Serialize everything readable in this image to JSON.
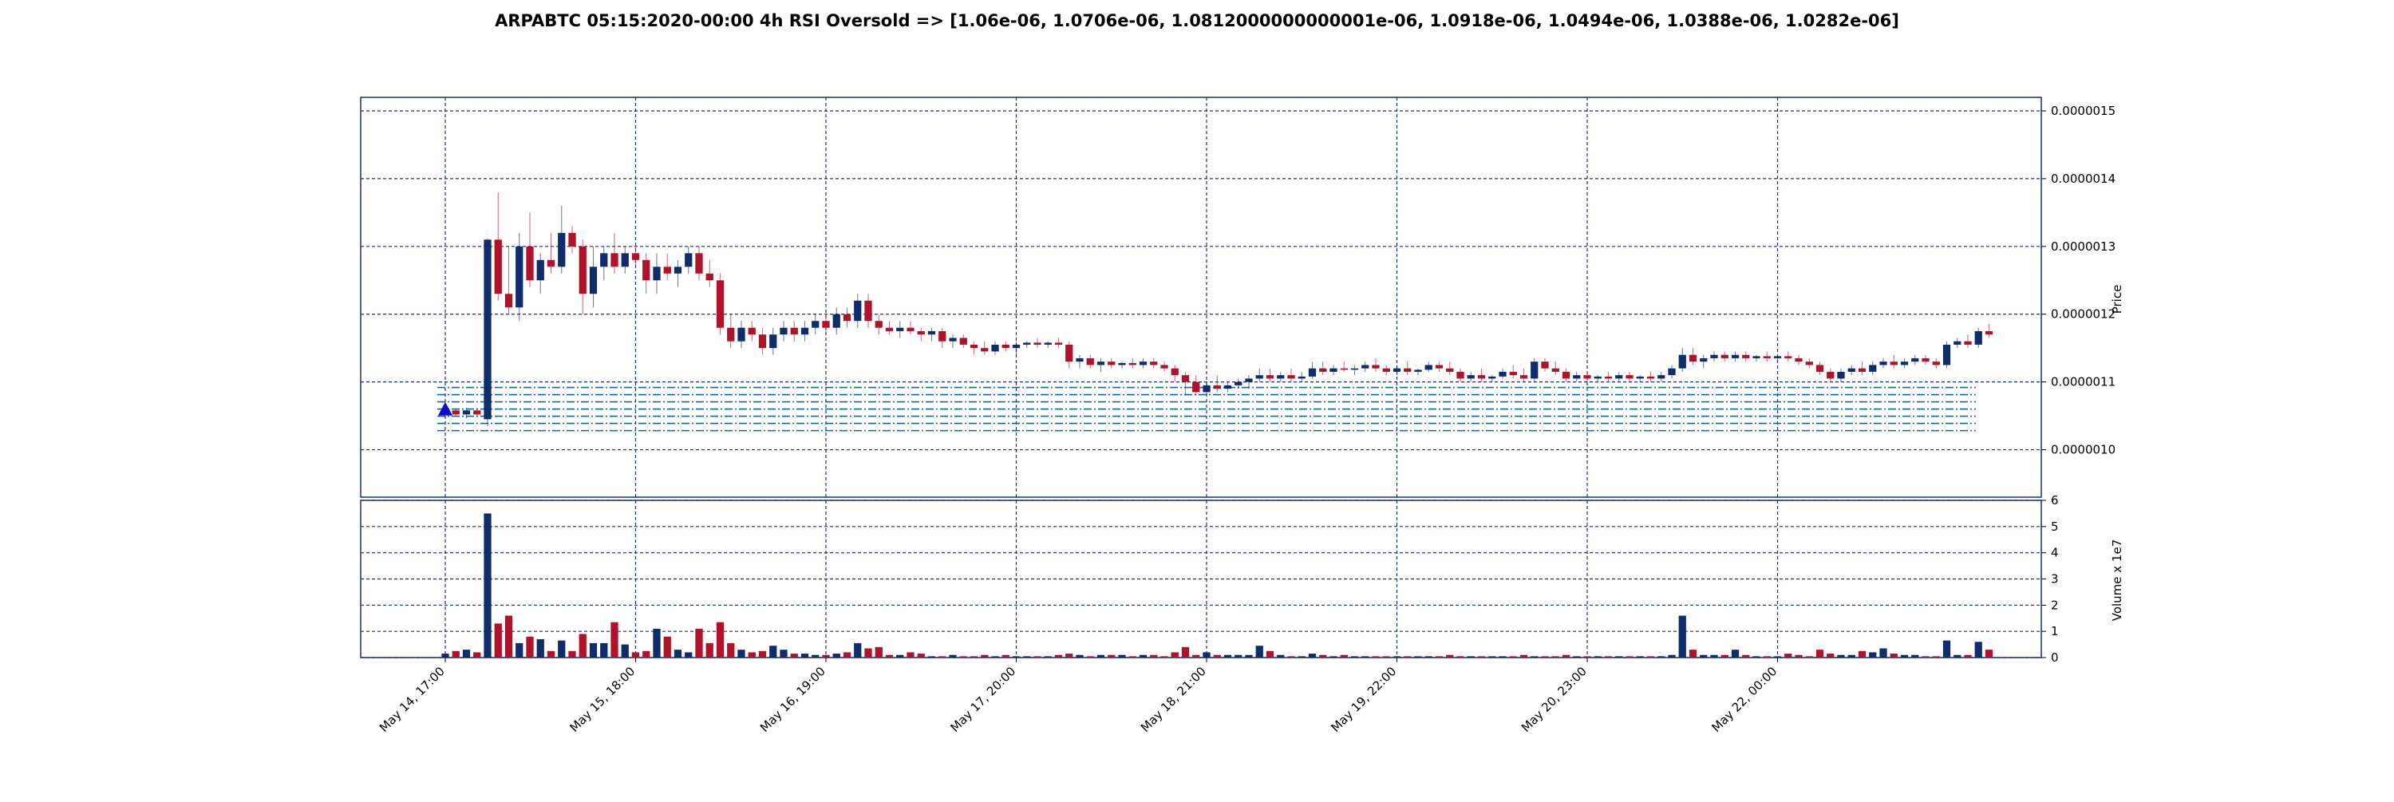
{
  "chart_data": {
    "type": "candlestick",
    "title": "ARPABTC 05:15:2020-00:00 4h RSI Oversold => [1.06e-06, 1.0706e-06, 1.0812000000000001e-06, 1.0918e-06, 1.0494e-06, 1.0388e-06, 1.0282e-06]",
    "colors": {
      "up": "#0f2d6b",
      "down": "#b0122a",
      "grid": "#1a2f7a",
      "level_line": "#0a6aa0",
      "marker": "#0a0acd"
    },
    "price_panel": {
      "ylabel": "Price",
      "ylim": [
        9.3e-07,
        1.52e-06
      ],
      "ytick_values": [
        1e-06,
        1.1e-06,
        1.2e-06,
        1.3e-06,
        1.4e-06,
        1.5e-06
      ],
      "ytick_labels": [
        "0.0000010",
        "0.0000011",
        "0.0000012",
        "0.0000013",
        "0.0000014",
        "0.0000015"
      ],
      "grid": true,
      "horizontal_levels": [
        1.06e-06,
        1.0706e-06,
        1.0812e-06,
        1.0918e-06,
        1.0494e-06,
        1.0388e-06,
        1.0282e-06
      ],
      "signal_marker": {
        "type": "triangle-up",
        "bar": 0,
        "price": 1.06e-06
      }
    },
    "volume_panel": {
      "ylabel": "Volume x 1e7",
      "ylim": [
        0,
        6
      ],
      "ytick_values": [
        0,
        1,
        2,
        3,
        4,
        5,
        6
      ],
      "ytick_labels": [
        "0",
        "1",
        "2",
        "3",
        "4",
        "5",
        "6"
      ],
      "grid": true
    },
    "x_axis": {
      "num_bars": 145,
      "tick_bars": [
        0,
        18,
        36,
        54,
        72,
        90,
        108,
        126
      ],
      "tick_labels": [
        "May 14, 17:00",
        "May 15, 18:00",
        "May 16, 19:00",
        "May 17, 20:00",
        "May 18, 21:00",
        "May 19, 22:00",
        "May 20, 23:00",
        "May 22, 00:00"
      ]
    },
    "bars": [
      [
        1.055e-06,
        1.062e-06,
        1.048e-06,
        1.058e-06,
        0.15
      ],
      [
        1.058e-06,
        1.06e-06,
        1.05e-06,
        1.052e-06,
        0.25
      ],
      [
        1.052e-06,
        1.062e-06,
        1.046e-06,
        1.058e-06,
        0.3
      ],
      [
        1.058e-06,
        1.062e-06,
        1.048e-06,
        1.052e-06,
        0.2
      ],
      [
        1.045e-06,
        1.312e-06,
        1.035e-06,
        1.31e-06,
        5.5
      ],
      [
        1.31e-06,
        1.38e-06,
        1.22e-06,
        1.23e-06,
        1.3
      ],
      [
        1.23e-06,
        1.3e-06,
        1.2e-06,
        1.21e-06,
        1.6
      ],
      [
        1.21e-06,
        1.32e-06,
        1.19e-06,
        1.3e-06,
        0.55
      ],
      [
        1.3e-06,
        1.35e-06,
        1.24e-06,
        1.25e-06,
        0.8
      ],
      [
        1.25e-06,
        1.29e-06,
        1.23e-06,
        1.28e-06,
        0.7
      ],
      [
        1.28e-06,
        1.32e-06,
        1.26e-06,
        1.27e-06,
        0.25
      ],
      [
        1.27e-06,
        1.36e-06,
        1.26e-06,
        1.32e-06,
        0.65
      ],
      [
        1.32e-06,
        1.33e-06,
        1.29e-06,
        1.3e-06,
        0.25
      ],
      [
        1.3e-06,
        1.31e-06,
        1.2e-06,
        1.23e-06,
        0.9
      ],
      [
        1.23e-06,
        1.3e-06,
        1.21e-06,
        1.27e-06,
        0.55
      ],
      [
        1.27e-06,
        1.3e-06,
        1.25e-06,
        1.29e-06,
        0.55
      ],
      [
        1.29e-06,
        1.32e-06,
        1.26e-06,
        1.27e-06,
        1.35
      ],
      [
        1.27e-06,
        1.3e-06,
        1.26e-06,
        1.29e-06,
        0.5
      ],
      [
        1.29e-06,
        1.3e-06,
        1.27e-06,
        1.28e-06,
        0.2
      ],
      [
        1.28e-06,
        1.29e-06,
        1.23e-06,
        1.25e-06,
        0.25
      ],
      [
        1.25e-06,
        1.29e-06,
        1.23e-06,
        1.27e-06,
        1.1
      ],
      [
        1.27e-06,
        1.29e-06,
        1.25e-06,
        1.26e-06,
        0.8
      ],
      [
        1.26e-06,
        1.28e-06,
        1.24e-06,
        1.27e-06,
        0.3
      ],
      [
        1.27e-06,
        1.3e-06,
        1.26e-06,
        1.29e-06,
        0.2
      ],
      [
        1.29e-06,
        1.3e-06,
        1.25e-06,
        1.26e-06,
        1.1
      ],
      [
        1.26e-06,
        1.28e-06,
        1.24e-06,
        1.25e-06,
        0.55
      ],
      [
        1.25e-06,
        1.26e-06,
        1.17e-06,
        1.18e-06,
        1.35
      ],
      [
        1.18e-06,
        1.2e-06,
        1.15e-06,
        1.16e-06,
        0.55
      ],
      [
        1.16e-06,
        1.19e-06,
        1.15e-06,
        1.18e-06,
        0.3
      ],
      [
        1.18e-06,
        1.19e-06,
        1.16e-06,
        1.17e-06,
        0.2
      ],
      [
        1.17e-06,
        1.18e-06,
        1.14e-06,
        1.15e-06,
        0.25
      ],
      [
        1.15e-06,
        1.18e-06,
        1.14e-06,
        1.17e-06,
        0.45
      ],
      [
        1.17e-06,
        1.19e-06,
        1.16e-06,
        1.18e-06,
        0.3
      ],
      [
        1.18e-06,
        1.19e-06,
        1.16e-06,
        1.17e-06,
        0.15
      ],
      [
        1.17e-06,
        1.19e-06,
        1.16e-06,
        1.18e-06,
        0.15
      ],
      [
        1.18e-06,
        1.2e-06,
        1.17e-06,
        1.19e-06,
        0.1
      ],
      [
        1.19e-06,
        1.2e-06,
        1.17e-06,
        1.18e-06,
        0.1
      ],
      [
        1.18e-06,
        1.21e-06,
        1.17e-06,
        1.2e-06,
        0.15
      ],
      [
        1.2e-06,
        1.21e-06,
        1.18e-06,
        1.19e-06,
        0.2
      ],
      [
        1.19e-06,
        1.23e-06,
        1.18e-06,
        1.22e-06,
        0.55
      ],
      [
        1.22e-06,
        1.23e-06,
        1.18e-06,
        1.19e-06,
        0.35
      ],
      [
        1.19e-06,
        1.2e-06,
        1.17e-06,
        1.18e-06,
        0.4
      ],
      [
        1.18e-06,
        1.19e-06,
        1.17e-06,
        1.175e-06,
        0.1
      ],
      [
        1.175e-06,
        1.19e-06,
        1.165e-06,
        1.18e-06,
        0.1
      ],
      [
        1.18e-06,
        1.19e-06,
        1.17e-06,
        1.175e-06,
        0.2
      ],
      [
        1.175e-06,
        1.18e-06,
        1.16e-06,
        1.17e-06,
        0.15
      ],
      [
        1.17e-06,
        1.18e-06,
        1.16e-06,
        1.175e-06,
        0.05
      ],
      [
        1.175e-06,
        1.18e-06,
        1.15e-06,
        1.16e-06,
        0.05
      ],
      [
        1.16e-06,
        1.17e-06,
        1.15e-06,
        1.165e-06,
        0.1
      ],
      [
        1.165e-06,
        1.17e-06,
        1.15e-06,
        1.155e-06,
        0.05
      ],
      [
        1.155e-06,
        1.16e-06,
        1.14e-06,
        1.15e-06,
        0.05
      ],
      [
        1.15e-06,
        1.16e-06,
        1.14e-06,
        1.145e-06,
        0.1
      ],
      [
        1.145e-06,
        1.16e-06,
        1.14e-06,
        1.155e-06,
        0.05
      ],
      [
        1.155e-06,
        1.16e-06,
        1.145e-06,
        1.15e-06,
        0.1
      ],
      [
        1.15e-06,
        1.16e-06,
        1.14e-06,
        1.155e-06,
        0.05
      ],
      [
        1.155e-06,
        1.16e-06,
        1.15e-06,
        1.158e-06,
        0.05
      ],
      [
        1.158e-06,
        1.165e-06,
        1.15e-06,
        1.155e-06,
        0.05
      ],
      [
        1.155e-06,
        1.16e-06,
        1.15e-06,
        1.158e-06,
        0.05
      ],
      [
        1.158e-06,
        1.165e-06,
        1.15e-06,
        1.155e-06,
        0.1
      ],
      [
        1.155e-06,
        1.16e-06,
        1.12e-06,
        1.13e-06,
        0.15
      ],
      [
        1.13e-06,
        1.14e-06,
        1.12e-06,
        1.135e-06,
        0.1
      ],
      [
        1.135e-06,
        1.14e-06,
        1.12e-06,
        1.125e-06,
        0.05
      ],
      [
        1.125e-06,
        1.135e-06,
        1.115e-06,
        1.13e-06,
        0.1
      ],
      [
        1.13e-06,
        1.135e-06,
        1.12e-06,
        1.125e-06,
        0.1
      ],
      [
        1.125e-06,
        1.13e-06,
        1.12e-06,
        1.128e-06,
        0.1
      ],
      [
        1.128e-06,
        1.135e-06,
        1.12e-06,
        1.125e-06,
        0.05
      ],
      [
        1.125e-06,
        1.135e-06,
        1.12e-06,
        1.13e-06,
        0.1
      ],
      [
        1.13e-06,
        1.135e-06,
        1.12e-06,
        1.125e-06,
        0.1
      ],
      [
        1.125e-06,
        1.13e-06,
        1.115e-06,
        1.12e-06,
        0.05
      ],
      [
        1.12e-06,
        1.125e-06,
        1.1e-06,
        1.11e-06,
        0.2
      ],
      [
        1.11e-06,
        1.115e-06,
        1.08e-06,
        1.1e-06,
        0.4
      ],
      [
        1.1e-06,
        1.11e-06,
        1.08e-06,
        1.085e-06,
        0.1
      ],
      [
        1.085e-06,
        1.1e-06,
        1.08e-06,
        1.095e-06,
        0.2
      ],
      [
        1.095e-06,
        1.11e-06,
        1.085e-06,
        1.09e-06,
        0.1
      ],
      [
        1.09e-06,
        1.1e-06,
        1.085e-06,
        1.095e-06,
        0.1
      ],
      [
        1.095e-06,
        1.105e-06,
        1.09e-06,
        1.1e-06,
        0.1
      ],
      [
        1.1e-06,
        1.11e-06,
        1.09e-06,
        1.105e-06,
        0.1
      ],
      [
        1.105e-06,
        1.12e-06,
        1.1e-06,
        1.11e-06,
        0.45
      ],
      [
        1.11e-06,
        1.12e-06,
        1.1e-06,
        1.105e-06,
        0.25
      ],
      [
        1.105e-06,
        1.115e-06,
        1.1e-06,
        1.11e-06,
        0.1
      ],
      [
        1.11e-06,
        1.12e-06,
        1.1e-06,
        1.105e-06,
        0.05
      ],
      [
        1.105e-06,
        1.115e-06,
        1.1e-06,
        1.108e-06,
        0.05
      ],
      [
        1.108e-06,
        1.13e-06,
        1.105e-06,
        1.12e-06,
        0.15
      ],
      [
        1.12e-06,
        1.13e-06,
        1.11e-06,
        1.115e-06,
        0.1
      ],
      [
        1.115e-06,
        1.125e-06,
        1.11e-06,
        1.12e-06,
        0.05
      ],
      [
        1.12e-06,
        1.13e-06,
        1.115e-06,
        1.118e-06,
        0.1
      ],
      [
        1.118e-06,
        1.125e-06,
        1.11e-06,
        1.12e-06,
        0.05
      ],
      [
        1.12e-06,
        1.13e-06,
        1.115e-06,
        1.125e-06,
        0.05
      ],
      [
        1.125e-06,
        1.135e-06,
        1.115e-06,
        1.12e-06,
        0.05
      ],
      [
        1.12e-06,
        1.125e-06,
        1.11e-06,
        1.115e-06,
        0.05
      ],
      [
        1.115e-06,
        1.125e-06,
        1.11e-06,
        1.12e-06,
        0.05
      ],
      [
        1.12e-06,
        1.13e-06,
        1.11e-06,
        1.115e-06,
        0.05
      ],
      [
        1.115e-06,
        1.12e-06,
        1.11e-06,
        1.118e-06,
        0.05
      ],
      [
        1.118e-06,
        1.13e-06,
        1.115e-06,
        1.125e-06,
        0.05
      ],
      [
        1.125e-06,
        1.13e-06,
        1.115e-06,
        1.12e-06,
        0.05
      ],
      [
        1.12e-06,
        1.13e-06,
        1.11e-06,
        1.115e-06,
        0.1
      ],
      [
        1.115e-06,
        1.12e-06,
        1.1e-06,
        1.105e-06,
        0.05
      ],
      [
        1.105e-06,
        1.115e-06,
        1.1e-06,
        1.11e-06,
        0.05
      ],
      [
        1.11e-06,
        1.12e-06,
        1.1e-06,
        1.105e-06,
        0.05
      ],
      [
        1.105e-06,
        1.11e-06,
        1.1e-06,
        1.108e-06,
        0.05
      ],
      [
        1.108e-06,
        1.12e-06,
        1.105e-06,
        1.115e-06,
        0.05
      ],
      [
        1.115e-06,
        1.125e-06,
        1.105e-06,
        1.11e-06,
        0.05
      ],
      [
        1.11e-06,
        1.12e-06,
        1.1e-06,
        1.105e-06,
        0.1
      ],
      [
        1.105e-06,
        1.135e-06,
        1.1e-06,
        1.13e-06,
        0.05
      ],
      [
        1.13e-06,
        1.135e-06,
        1.115e-06,
        1.12e-06,
        0.05
      ],
      [
        1.12e-06,
        1.13e-06,
        1.11e-06,
        1.115e-06,
        0.05
      ],
      [
        1.115e-06,
        1.12e-06,
        1.1e-06,
        1.105e-06,
        0.1
      ],
      [
        1.105e-06,
        1.115e-06,
        1.1e-06,
        1.11e-06,
        0.05
      ],
      [
        1.11e-06,
        1.115e-06,
        1.1e-06,
        1.105e-06,
        0.05
      ],
      [
        1.105e-06,
        1.11e-06,
        1.1e-06,
        1.108e-06,
        0.05
      ],
      [
        1.108e-06,
        1.115e-06,
        1.1e-06,
        1.105e-06,
        0.05
      ],
      [
        1.105e-06,
        1.115e-06,
        1.1e-06,
        1.11e-06,
        0.05
      ],
      [
        1.11e-06,
        1.115e-06,
        1.1e-06,
        1.105e-06,
        0.05
      ],
      [
        1.105e-06,
        1.11e-06,
        1.1e-06,
        1.108e-06,
        0.05
      ],
      [
        1.108e-06,
        1.115e-06,
        1.1e-06,
        1.105e-06,
        0.05
      ],
      [
        1.105e-06,
        1.115e-06,
        1.1e-06,
        1.11e-06,
        0.05
      ],
      [
        1.11e-06,
        1.125e-06,
        1.105e-06,
        1.12e-06,
        0.1
      ],
      [
        1.12e-06,
        1.15e-06,
        1.115e-06,
        1.14e-06,
        1.6
      ],
      [
        1.14e-06,
        1.15e-06,
        1.125e-06,
        1.13e-06,
        0.3
      ],
      [
        1.13e-06,
        1.14e-06,
        1.12e-06,
        1.135e-06,
        0.1
      ],
      [
        1.135e-06,
        1.145e-06,
        1.13e-06,
        1.14e-06,
        0.1
      ],
      [
        1.14e-06,
        1.145e-06,
        1.13e-06,
        1.135e-06,
        0.1
      ],
      [
        1.135e-06,
        1.145e-06,
        1.13e-06,
        1.14e-06,
        0.3
      ],
      [
        1.14e-06,
        1.145e-06,
        1.13e-06,
        1.135e-06,
        0.1
      ],
      [
        1.135e-06,
        1.14e-06,
        1.13e-06,
        1.138e-06,
        0.05
      ],
      [
        1.138e-06,
        1.145e-06,
        1.13e-06,
        1.135e-06,
        0.05
      ],
      [
        1.135e-06,
        1.14e-06,
        1.13e-06,
        1.138e-06,
        0.05
      ],
      [
        1.138e-06,
        1.145e-06,
        1.13e-06,
        1.135e-06,
        0.15
      ],
      [
        1.135e-06,
        1.14e-06,
        1.125e-06,
        1.13e-06,
        0.1
      ],
      [
        1.13e-06,
        1.135e-06,
        1.12e-06,
        1.125e-06,
        0.05
      ],
      [
        1.125e-06,
        1.13e-06,
        1.11e-06,
        1.115e-06,
        0.3
      ],
      [
        1.115e-06,
        1.12e-06,
        1.1e-06,
        1.105e-06,
        0.15
      ],
      [
        1.105e-06,
        1.12e-06,
        1.1e-06,
        1.115e-06,
        0.1
      ],
      [
        1.115e-06,
        1.125e-06,
        1.11e-06,
        1.12e-06,
        0.1
      ],
      [
        1.12e-06,
        1.13e-06,
        1.11e-06,
        1.115e-06,
        0.25
      ],
      [
        1.115e-06,
        1.13e-06,
        1.11e-06,
        1.125e-06,
        0.2
      ],
      [
        1.125e-06,
        1.135e-06,
        1.12e-06,
        1.13e-06,
        0.35
      ],
      [
        1.13e-06,
        1.14e-06,
        1.12e-06,
        1.125e-06,
        0.15
      ],
      [
        1.125e-06,
        1.135e-06,
        1.12e-06,
        1.13e-06,
        0.1
      ],
      [
        1.13e-06,
        1.14e-06,
        1.125e-06,
        1.135e-06,
        0.1
      ],
      [
        1.135e-06,
        1.14e-06,
        1.125e-06,
        1.13e-06,
        0.05
      ],
      [
        1.13e-06,
        1.135e-06,
        1.12e-06,
        1.125e-06,
        0.05
      ],
      [
        1.125e-06,
        1.16e-06,
        1.12e-06,
        1.155e-06,
        0.65
      ],
      [
        1.155e-06,
        1.165e-06,
        1.15e-06,
        1.16e-06,
        0.1
      ],
      [
        1.16e-06,
        1.17e-06,
        1.15e-06,
        1.155e-06,
        0.1
      ],
      [
        1.155e-06,
        1.18e-06,
        1.15e-06,
        1.175e-06,
        0.6
      ],
      [
        1.175e-06,
        1.185e-06,
        1.165e-06,
        1.17e-06,
        0.3
      ]
    ]
  }
}
